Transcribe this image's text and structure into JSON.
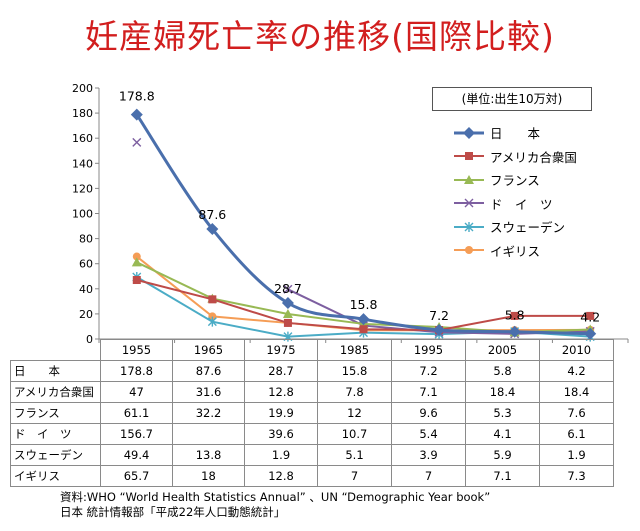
{
  "title": "妊産婦死亡率の推移(国際比較)",
  "unit_label": "(単位:出生10万対)",
  "source": {
    "line1": "資料:WHO “World Health Statistics Annual” 、UN “Demographic Year book”",
    "line2": "日本  統計情報部「平成22年人口動態統計」"
  },
  "colors": {
    "japan": "#4a6fac",
    "usa": "#be4b48",
    "france": "#98b954",
    "germany": "#7d5fa0",
    "sweden": "#4bacc6",
    "uk": "#f59d56"
  },
  "chart_data": {
    "type": "line",
    "title": "妊産婦死亡率の推移(国際比較)",
    "xlabel": "",
    "ylabel": "",
    "x": [
      "1955",
      "1965",
      "1975",
      "1985",
      "1995",
      "2005",
      "2010"
    ],
    "ylim": [
      0,
      200
    ],
    "yticks": [
      0,
      20,
      40,
      60,
      80,
      100,
      120,
      140,
      160,
      180,
      200
    ],
    "grid": false,
    "legend_position": "right",
    "series": [
      {
        "name": "日　　本",
        "key": "japan",
        "marker": "diamond",
        "values": [
          178.8,
          87.6,
          28.7,
          15.8,
          7.2,
          5.8,
          4.2
        ],
        "labels": [
          "178.8",
          "87.6",
          "28.7",
          "15.8",
          "7.2",
          "5.8",
          "4.2"
        ]
      },
      {
        "name": "アメリカ合衆国",
        "key": "usa",
        "marker": "square",
        "values": [
          47,
          31.6,
          12.8,
          7.8,
          7.1,
          18.4,
          18.4
        ]
      },
      {
        "name": "フランス",
        "key": "france",
        "marker": "triangle",
        "values": [
          61.1,
          32.2,
          19.9,
          12,
          9.6,
          5.3,
          7.6
        ]
      },
      {
        "name": "ド　イ　ツ",
        "key": "germany",
        "marker": "x",
        "values": [
          156.7,
          null,
          39.6,
          10.7,
          5.4,
          4.1,
          6.1
        ]
      },
      {
        "name": "スウェーデン",
        "key": "sweden",
        "marker": "star",
        "values": [
          49.4,
          13.8,
          1.9,
          5.1,
          3.9,
          5.9,
          1.9
        ]
      },
      {
        "name": "イギリス",
        "key": "uk",
        "marker": "circle",
        "values": [
          65.7,
          18,
          12.8,
          7,
          7,
          7.1,
          7.3
        ]
      }
    ]
  },
  "table": {
    "rows": [
      {
        "label": "日　　本",
        "cells": [
          "178.8",
          "87.6",
          "28.7",
          "15.8",
          "7.2",
          "5.8",
          "4.2"
        ]
      },
      {
        "label": "アメリカ合衆国",
        "cells": [
          "47",
          "31.6",
          "12.8",
          "7.8",
          "7.1",
          "18.4",
          "18.4"
        ]
      },
      {
        "label": "フランス",
        "cells": [
          "61.1",
          "32.2",
          "19.9",
          "12",
          "9.6",
          "5.3",
          "7.6"
        ]
      },
      {
        "label": "ド　イ　ツ",
        "cells": [
          "156.7",
          "",
          "39.6",
          "10.7",
          "5.4",
          "4.1",
          "6.1"
        ]
      },
      {
        "label": "スウェーデン",
        "cells": [
          "49.4",
          "13.8",
          "1.9",
          "5.1",
          "3.9",
          "5.9",
          "1.9"
        ]
      },
      {
        "label": "イギリス",
        "cells": [
          "65.7",
          "18",
          "12.8",
          "7",
          "7",
          "7.1",
          "7.3"
        ]
      }
    ]
  }
}
